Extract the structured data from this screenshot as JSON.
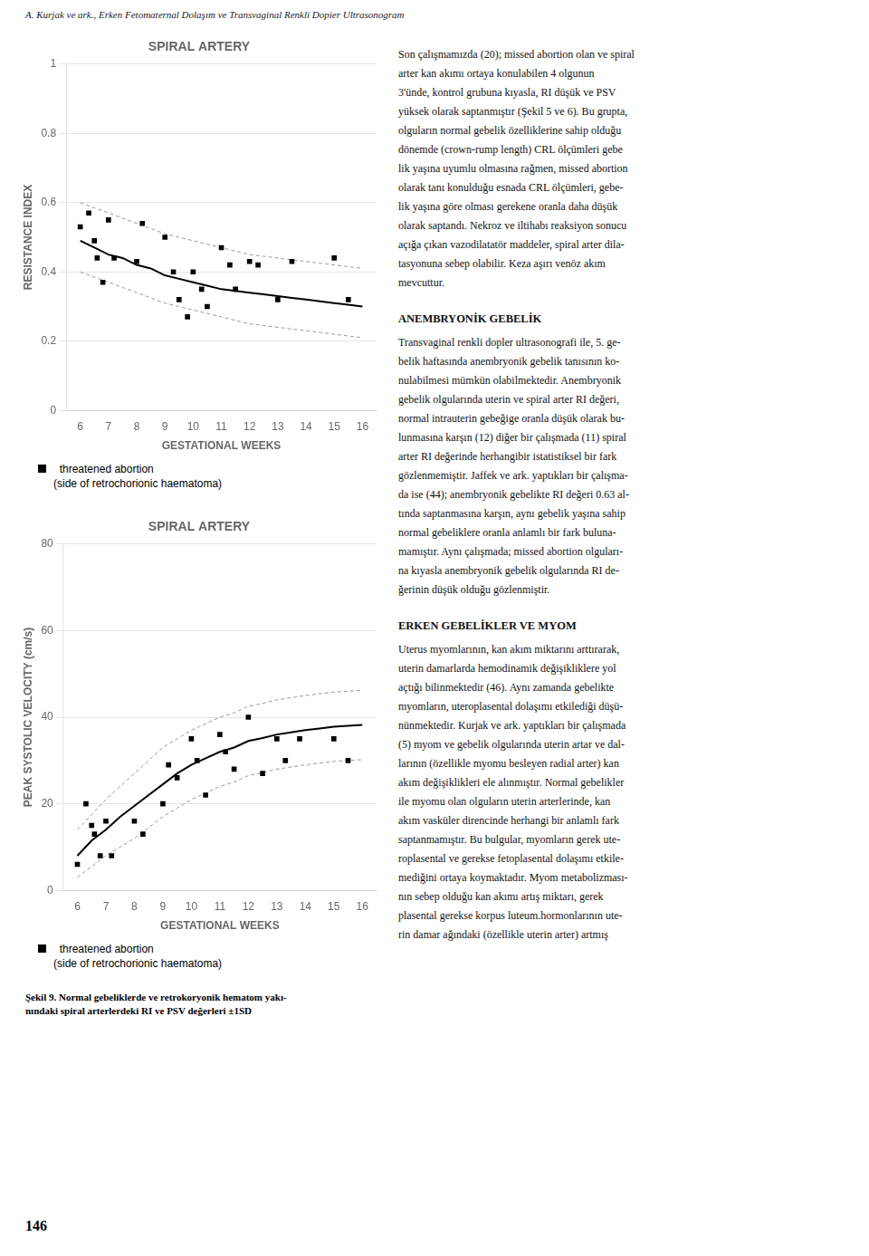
{
  "header_left": "A. Kurjak ve ark.,",
  "header_right": " Erken Fetomaternal Dolaşım ve Transvaginal Renkli Dopier Ultrasonogram",
  "caption": "Şekil 9. Normal gebeliklerde ve retrokoryonik hematom yakı-\nnındaki spiral arterlerdeki RI ve PSV değerleri ±1SD",
  "page_number": "146",
  "text_sections": [
    {
      "lines": [
        "Son çalışmamızda (20); missed abortion olan ve spiral",
        "arter kan akımı ortaya konulabilen 4 olgunun",
        "3'ünde, kontrol grubuna kıyasla, RI düşük ve PSV",
        "yüksek olarak saptanmıştır (Şekil 5 ve 6). Bu grupta,",
        "olguların normal gebelik özelliklerine sahip olduğu",
        "dönemde (crown-rump length) CRL ölçümleri gebe",
        "lik yaşına uyumlu olmasına rağmen, missed abortion",
        "olarak tanı konulduğu esnada CRL ölçümleri, gebe-",
        "lik yaşına göre olması gerekene oranla daha düşük",
        "olarak saptandı. Nekroz ve iltihabı reaksiyon sonucu",
        "açığa çıkan vazodilatatör maddeler, spiral arter dila-",
        "tasyonuna sebep olabilir. Keza aşırı venöz akım",
        "mevcuttur."
      ]
    },
    {
      "title": "ANEMBRYONİK GEBELİK",
      "lines": [
        "Transvaginal renkli dopler ultrasonografi ile, 5. ge-",
        "belik haftasında anembryonik gebelik tanısının ko-",
        "nulabilmesi mümkün olabilmektedir. Anembryonik",
        "gebelik olgularında uterin ve spiral arter RI değeri,",
        "normal intrauterin gebeğige oranla düşük olarak bu-",
        "lunmasına karşın (12) diğer bir çalışmada (11) spiral",
        "arter RI değerinde herhangibir istatistiksel bir fark",
        "gözlenmemiştir. Jaffek ve ark. yaptıkları bir çalışma-",
        "da ise (44); anembryonik gebelikte RI değeri 0.63 al-",
        "tında saptanmasına karşın, aynı gebelik yaşına sahip",
        "normal gebeliklere oranla anlamlı bir fark buluna-",
        "mamıştır. Aynı çalışmada; missed abortion olguları-",
        "na kıyasla anembryonik gebelik olgularında RI de-",
        "ğerinin düşük olduğu gözlenmiştir."
      ]
    },
    {
      "title": "ERKEN GEBELİKLER VE MYOM",
      "lines": [
        "Uterus myomlarının, kan akım miktarını arttırarak,",
        "uterin damarlarda hemodinamik değişikliklere yol",
        "açtığı bilinmektedir (46). Aynı zamanda gebelikte",
        "myomların, uteroplasental dolaşımı etkilediği düşü-",
        "nünmektedir. Kurjak ve ark. yaptıkları bir çalışmada",
        "(5) myom ve gebelik olgularında uterin artar ve dal-",
        "larının (özellikle myomu besleyen radial arter) kan",
        "akım değişiklikleri ele alınmıştır. Normal gebelikler",
        "ile myomu olan olguların uterin arterlerinde, kan",
        "akım vasküler direncinde herhangi bir anlamlı fark",
        "saptanmamıştır. Bu bulgular, myomların gerek ute-",
        "roplasental ve gerekse fetoplasental dolaşımı etkile-",
        "mediğini ortaya koymaktadır. Myom metabolizması-",
        "nın sebep olduğu kan akımı artış miktarı, gerek",
        "plasental gerekse korpus luteum.hormonlarının ute-",
        "rin damar ağındaki (özellikle uterin arter) artmış"
      ]
    }
  ],
  "chart_data": [
    {
      "type": "line",
      "title": "SPIRAL ARTERY",
      "y_label": "RESISTANCE INDEX",
      "x_label": "GESTATIONAL WEEKS",
      "xlim": [
        5.5,
        16.5
      ],
      "xticks": [
        6,
        7,
        8,
        9,
        10,
        11,
        12,
        13,
        14,
        15,
        16
      ],
      "ylim": [
        0,
        1.0
      ],
      "yticks": [
        0,
        0.2,
        0.4,
        0.6,
        0.8,
        1
      ],
      "grid": "y",
      "legend": "bottom",
      "series": [
        {
          "type": "line",
          "line_style": "solid",
          "color": "#000000",
          "x": [
            6,
            6.5,
            7,
            7.5,
            8,
            8.5,
            9,
            9.5,
            10,
            10.5,
            11,
            11.5,
            12,
            12.5,
            13,
            13.5,
            14,
            14.5,
            15,
            15.5,
            16
          ],
          "values": [
            0.49,
            0.47,
            0.45,
            0.44,
            0.42,
            0.41,
            0.39,
            0.38,
            0.37,
            0.36,
            0.35,
            0.345,
            0.34,
            0.335,
            0.33,
            0.325,
            0.32,
            0.315,
            0.31,
            0.305,
            0.3
          ]
        },
        {
          "type": "line",
          "line_style": "dashed",
          "color": "#999999",
          "x": [
            6,
            6.5,
            7,
            7.5,
            8,
            8.5,
            9,
            9.5,
            10,
            10.5,
            11,
            11.5,
            12,
            12.5,
            13,
            13.5,
            14,
            14.5,
            15,
            15.5,
            16
          ],
          "values": [
            0.6,
            0.585,
            0.57,
            0.555,
            0.54,
            0.525,
            0.51,
            0.5,
            0.49,
            0.48,
            0.47,
            0.46,
            0.45,
            0.445,
            0.44,
            0.435,
            0.43,
            0.425,
            0.42,
            0.415,
            0.41
          ]
        },
        {
          "type": "line",
          "line_style": "dashed",
          "color": "#999999",
          "x": [
            6,
            6.5,
            7,
            7.5,
            8,
            8.5,
            9,
            9.5,
            10,
            10.5,
            11,
            11.5,
            12,
            12.5,
            13,
            13.5,
            14,
            14.5,
            15,
            15.5,
            16
          ],
          "values": [
            0.4,
            0.385,
            0.37,
            0.355,
            0.34,
            0.325,
            0.31,
            0.3,
            0.29,
            0.28,
            0.27,
            0.26,
            0.25,
            0.245,
            0.24,
            0.235,
            0.23,
            0.225,
            0.22,
            0.215,
            0.21
          ]
        },
        {
          "name": "  threatened abortion\n(side of retrochorionic haematoma)",
          "type": "scatter",
          "marker": "square",
          "color": "#000000",
          "x": [
            6.0,
            6.3,
            6.5,
            6.6,
            6.8,
            7.0,
            7.2,
            8.0,
            8.2,
            9.0,
            9.3,
            9.5,
            9.8,
            10.0,
            10.3,
            10.5,
            11.0,
            11.3,
            11.5,
            12.0,
            12.3,
            13.0,
            13.5,
            15.0,
            15.5
          ],
          "values": [
            0.53,
            0.57,
            0.49,
            0.44,
            0.37,
            0.55,
            0.44,
            0.43,
            0.54,
            0.5,
            0.4,
            0.32,
            0.27,
            0.4,
            0.35,
            0.3,
            0.47,
            0.42,
            0.35,
            0.43,
            0.42,
            0.32,
            0.43,
            0.44,
            0.32
          ]
        }
      ]
    },
    {
      "type": "line",
      "title": "SPIRAL ARTERY",
      "y_label": "PEAK SYSTOLIC VELOCITY (cm/s)",
      "x_label": "GESTATIONAL WEEKS",
      "xlim": [
        5.5,
        16.5
      ],
      "xticks": [
        6,
        7,
        8,
        9,
        10,
        11,
        12,
        13,
        14,
        15,
        16
      ],
      "ylim": [
        0,
        80
      ],
      "yticks": [
        0,
        20,
        40,
        60,
        80
      ],
      "grid": "y",
      "legend": "bottom",
      "series": [
        {
          "type": "line",
          "line_style": "solid",
          "color": "#000000",
          "x": [
            6,
            6.5,
            7,
            7.5,
            8,
            8.5,
            9,
            9.5,
            10,
            10.5,
            11,
            11.5,
            12,
            12.5,
            13,
            13.5,
            14,
            14.5,
            15,
            15.5,
            16
          ],
          "values": [
            8.0,
            11.5,
            14.0,
            17.0,
            19.5,
            22.0,
            24.5,
            27.0,
            29.0,
            30.5,
            32.0,
            33.0,
            34.5,
            35.2,
            36.0,
            36.5,
            37.0,
            37.4,
            37.8,
            38.0,
            38.2
          ]
        },
        {
          "type": "line",
          "line_style": "dashed",
          "color": "#999999",
          "x": [
            6,
            6.5,
            7,
            7.5,
            8,
            8.5,
            9,
            9.5,
            10,
            10.5,
            11,
            11.5,
            12,
            12.5,
            13,
            13.5,
            14,
            14.5,
            15,
            15.5,
            16
          ],
          "values": [
            14.0,
            17.5,
            21.0,
            24.0,
            27.0,
            30.0,
            33.0,
            35.0,
            37.0,
            38.5,
            40.0,
            41.0,
            42.5,
            43.2,
            44.0,
            44.5,
            45.0,
            45.4,
            45.8,
            46.0,
            46.2
          ]
        },
        {
          "type": "line",
          "line_style": "dashed",
          "color": "#999999",
          "x": [
            6,
            6.5,
            7,
            7.5,
            8,
            8.5,
            9,
            9.5,
            10,
            10.5,
            11,
            11.5,
            12,
            12.5,
            13,
            13.5,
            14,
            14.5,
            15,
            15.5,
            16
          ],
          "values": [
            3.0,
            5.5,
            8.0,
            10.0,
            12.0,
            14.5,
            17.0,
            19.0,
            21.0,
            22.5,
            24.0,
            25.0,
            26.5,
            27.2,
            28.0,
            28.5,
            29.0,
            29.4,
            29.8,
            30.0,
            30.2
          ]
        },
        {
          "name": "  threatened abortion\n(side of retrochorionic haematoma)",
          "type": "scatter",
          "marker": "square",
          "color": "#000000",
          "x": [
            6.0,
            6.3,
            6.5,
            6.6,
            6.8,
            7.0,
            7.2,
            8.0,
            8.3,
            9.0,
            9.2,
            9.5,
            10.0,
            10.2,
            10.5,
            11.0,
            11.2,
            11.5,
            12.0,
            12.5,
            13.0,
            13.3,
            13.8,
            15.0,
            15.5
          ],
          "values": [
            6.0,
            20.0,
            15.0,
            13.0,
            8.0,
            16.0,
            8.0,
            16.0,
            13.0,
            20.0,
            29.0,
            26.0,
            35.0,
            30.0,
            22.0,
            36.0,
            32.0,
            28.0,
            40.0,
            27.0,
            35.0,
            30.0,
            35.0,
            35.0,
            30.0
          ]
        }
      ]
    }
  ]
}
